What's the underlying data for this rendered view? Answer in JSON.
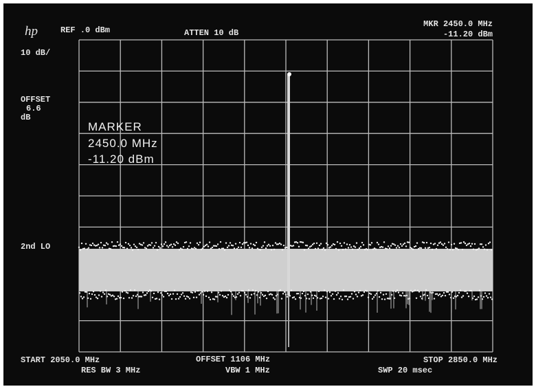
{
  "header": {
    "brand": "hp",
    "reference": "REF .0 dBm",
    "attenuation": "ATTEN 10 dB",
    "marker_frequency": "MKR 2450.0 MHz",
    "marker_level": "-11.20 dBm"
  },
  "left_panel": {
    "scale": "10 dB/",
    "offset_label": "OFFSET",
    "offset_value": "6.6",
    "offset_unit": "dB",
    "second_lo": "2nd LO"
  },
  "marker_readout": {
    "title": "MARKER",
    "frequency": "2450.0 MHz",
    "level": "-11.20 dBm"
  },
  "footer": {
    "start": "START 2050.0 MHz",
    "res_bw": "RES BW 3 MHz",
    "offset": "OFFSET 1106 MHz",
    "vbw": "VBW 1 MHz",
    "stop": "STOP 2850.0 MHz",
    "sweep": "SWP 20 msec"
  }
}
